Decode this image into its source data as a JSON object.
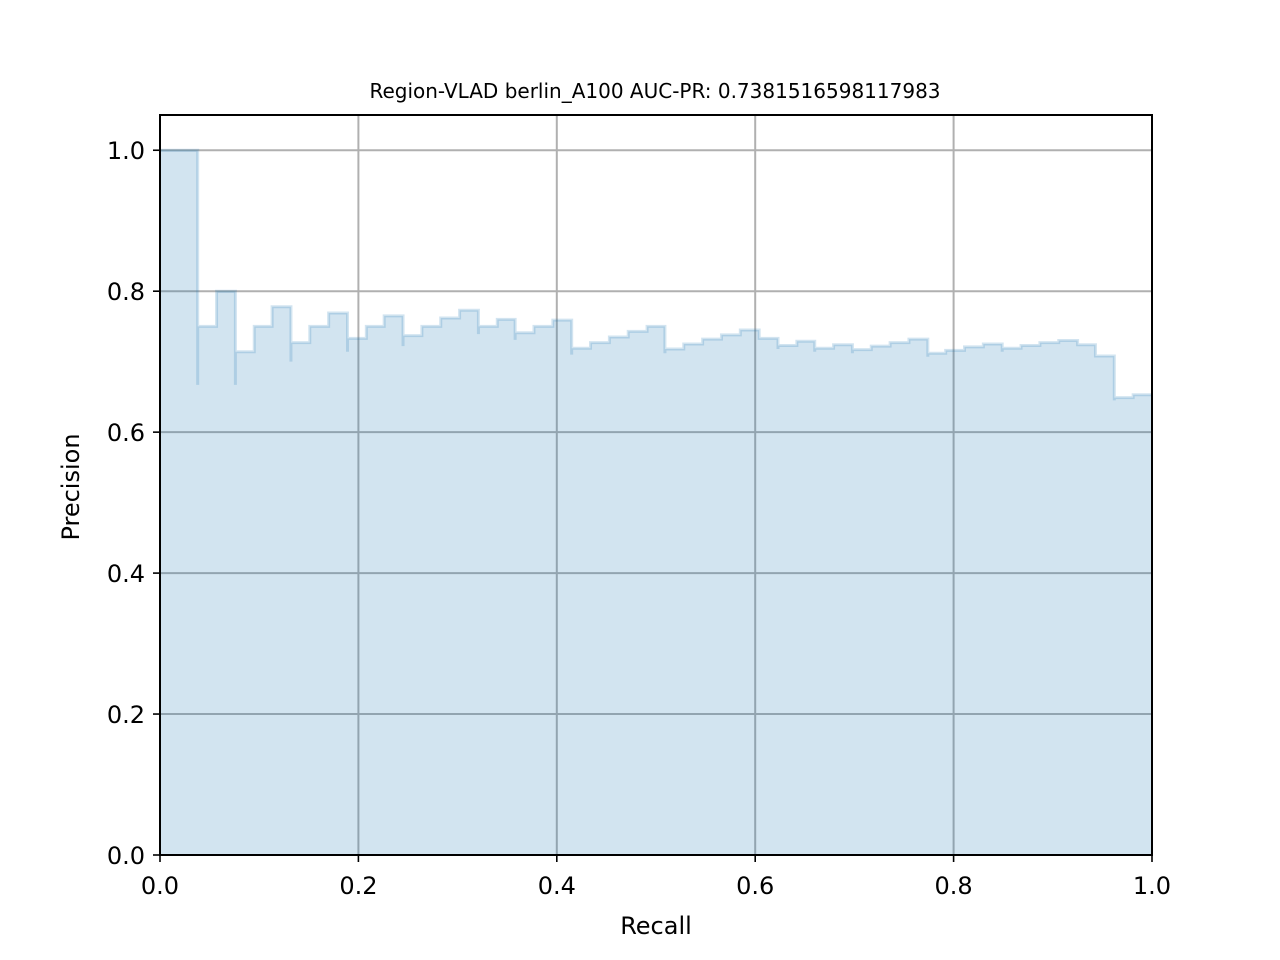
{
  "chart_data": {
    "type": "area",
    "title": "Region-VLAD berlin_A100 AUC-PR: 0.7381516598117983",
    "xlabel": "Recall",
    "ylabel": "Precision",
    "xlim": [
      0.0,
      1.0
    ],
    "ylim": [
      0.0,
      1.05
    ],
    "x_ticks": [
      "0.0",
      "0.2",
      "0.4",
      "0.6",
      "0.8",
      "1.0"
    ],
    "y_ticks": [
      "0.0",
      "0.2",
      "0.4",
      "0.6",
      "0.8",
      "1.0"
    ],
    "grid": true,
    "legend": "none",
    "step": "post",
    "series": [
      {
        "color": "#1f77b4",
        "points": [
          [
            0.0,
            1.0
          ],
          [
            0.038,
            0.667
          ],
          [
            0.038,
            0.75
          ],
          [
            0.057,
            0.8
          ],
          [
            0.076,
            0.667
          ],
          [
            0.076,
            0.714
          ],
          [
            0.095,
            0.75
          ],
          [
            0.113,
            0.778
          ],
          [
            0.132,
            0.7
          ],
          [
            0.132,
            0.727
          ],
          [
            0.151,
            0.75
          ],
          [
            0.17,
            0.769
          ],
          [
            0.189,
            0.714
          ],
          [
            0.189,
            0.733
          ],
          [
            0.208,
            0.75
          ],
          [
            0.226,
            0.765
          ],
          [
            0.245,
            0.722
          ],
          [
            0.245,
            0.737
          ],
          [
            0.264,
            0.75
          ],
          [
            0.283,
            0.762
          ],
          [
            0.302,
            0.773
          ],
          [
            0.321,
            0.739
          ],
          [
            0.321,
            0.75
          ],
          [
            0.34,
            0.76
          ],
          [
            0.358,
            0.731
          ],
          [
            0.358,
            0.741
          ],
          [
            0.377,
            0.75
          ],
          [
            0.396,
            0.759
          ],
          [
            0.415,
            0.71
          ],
          [
            0.415,
            0.719
          ],
          [
            0.434,
            0.727
          ],
          [
            0.453,
            0.735
          ],
          [
            0.472,
            0.743
          ],
          [
            0.491,
            0.75
          ],
          [
            0.509,
            0.712
          ],
          [
            0.509,
            0.718
          ],
          [
            0.528,
            0.725
          ],
          [
            0.547,
            0.732
          ],
          [
            0.566,
            0.738
          ],
          [
            0.585,
            0.745
          ],
          [
            0.604,
            0.733
          ],
          [
            0.623,
            0.718
          ],
          [
            0.623,
            0.723
          ],
          [
            0.642,
            0.729
          ],
          [
            0.66,
            0.714
          ],
          [
            0.66,
            0.719
          ],
          [
            0.679,
            0.724
          ],
          [
            0.698,
            0.712
          ],
          [
            0.698,
            0.717
          ],
          [
            0.717,
            0.722
          ],
          [
            0.736,
            0.727
          ],
          [
            0.755,
            0.732
          ],
          [
            0.774,
            0.707
          ],
          [
            0.774,
            0.712
          ],
          [
            0.792,
            0.716
          ],
          [
            0.811,
            0.721
          ],
          [
            0.83,
            0.725
          ],
          [
            0.849,
            0.714
          ],
          [
            0.849,
            0.719
          ],
          [
            0.868,
            0.723
          ],
          [
            0.887,
            0.727
          ],
          [
            0.906,
            0.73
          ],
          [
            0.925,
            0.724
          ],
          [
            0.943,
            0.708
          ],
          [
            0.962,
            0.645
          ],
          [
            0.962,
            0.649
          ],
          [
            0.981,
            0.653
          ],
          [
            1.0,
            0.653
          ]
        ]
      }
    ]
  }
}
